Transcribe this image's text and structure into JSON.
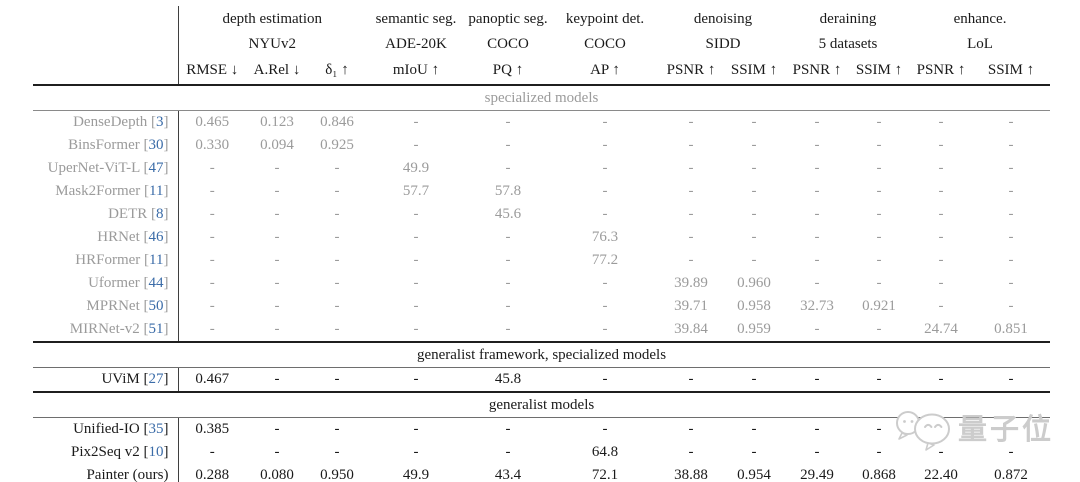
{
  "header": {
    "groups": [
      {
        "task": "depth estimation",
        "dataset": "NYUv2",
        "metrics": [
          "RMSE ↓",
          "A.Rel ↓",
          "δ₁ ↑"
        ]
      },
      {
        "task": "semantic seg.",
        "dataset": "ADE-20K",
        "metrics": [
          "mIoU ↑"
        ]
      },
      {
        "task": "panoptic seg.",
        "dataset": "COCO",
        "metrics": [
          "PQ ↑"
        ]
      },
      {
        "task": "keypoint det.",
        "dataset": "COCO",
        "metrics": [
          "AP ↑"
        ]
      },
      {
        "task": "denoising",
        "dataset": "SIDD",
        "metrics": [
          "PSNR ↑",
          "SSIM ↑"
        ]
      },
      {
        "task": "deraining",
        "dataset": "5 datasets",
        "metrics": [
          "PSNR ↑",
          "SSIM ↑"
        ]
      },
      {
        "task": "enhance.",
        "dataset": "LoL",
        "metrics": [
          "PSNR ↑",
          "SSIM ↑"
        ]
      }
    ]
  },
  "sections": [
    {
      "label": "specialized models",
      "rows": [
        {
          "name": "DenseDepth",
          "cite": "3",
          "values": [
            "0.465",
            "0.123",
            "0.846",
            "-",
            "-",
            "-",
            "-",
            "-",
            "-",
            "-",
            "-",
            "-"
          ]
        },
        {
          "name": "BinsFormer",
          "cite": "30",
          "values": [
            "0.330",
            "0.094",
            "0.925",
            "-",
            "-",
            "-",
            "-",
            "-",
            "-",
            "-",
            "-",
            "-"
          ]
        },
        {
          "name": "UperNet-ViT-L",
          "cite": "47",
          "values": [
            "-",
            "-",
            "-",
            "49.9",
            "-",
            "-",
            "-",
            "-",
            "-",
            "-",
            "-",
            "-"
          ]
        },
        {
          "name": "Mask2Former",
          "cite": "11",
          "values": [
            "-",
            "-",
            "-",
            "57.7",
            "57.8",
            "-",
            "-",
            "-",
            "-",
            "-",
            "-",
            "-"
          ]
        },
        {
          "name": "DETR",
          "cite": "8",
          "values": [
            "-",
            "-",
            "-",
            "-",
            "45.6",
            "-",
            "-",
            "-",
            "-",
            "-",
            "-",
            "-"
          ]
        },
        {
          "name": "HRNet",
          "cite": "46",
          "values": [
            "-",
            "-",
            "-",
            "-",
            "-",
            "76.3",
            "-",
            "-",
            "-",
            "-",
            "-",
            "-"
          ]
        },
        {
          "name": "HRFormer",
          "cite": "11",
          "values": [
            "-",
            "-",
            "-",
            "-",
            "-",
            "77.2",
            "-",
            "-",
            "-",
            "-",
            "-",
            "-"
          ]
        },
        {
          "name": "Uformer",
          "cite": "44",
          "values": [
            "-",
            "-",
            "-",
            "-",
            "-",
            "-",
            "39.89",
            "0.960",
            "-",
            "-",
            "-",
            "-"
          ]
        },
        {
          "name": "MPRNet",
          "cite": "50",
          "values": [
            "-",
            "-",
            "-",
            "-",
            "-",
            "-",
            "39.71",
            "0.958",
            "32.73",
            "0.921",
            "-",
            "-"
          ]
        },
        {
          "name": "MIRNet-v2",
          "cite": "51",
          "values": [
            "-",
            "-",
            "-",
            "-",
            "-",
            "-",
            "39.84",
            "0.959",
            "-",
            "-",
            "24.74",
            "0.851"
          ]
        }
      ]
    },
    {
      "label": "generalist framework, specialized models",
      "rows": [
        {
          "name": "UViM",
          "cite": "27",
          "values": [
            "0.467",
            "-",
            "-",
            "-",
            "45.8",
            "-",
            "-",
            "-",
            "-",
            "-",
            "-",
            "-"
          ]
        }
      ]
    },
    {
      "label": "generalist models",
      "rows": [
        {
          "name": "Unified-IO",
          "cite": "35",
          "values": [
            "0.385",
            "-",
            "-",
            "-",
            "-",
            "-",
            "-",
            "-",
            "-",
            "-",
            "-",
            "-"
          ]
        },
        {
          "name": "Pix2Seq v2",
          "cite": "10",
          "values": [
            "-",
            "-",
            "-",
            "-",
            "-",
            "64.8",
            "-",
            "-",
            "-",
            "-",
            "-",
            "-"
          ]
        },
        {
          "name": "Painter (ours)",
          "cite": "",
          "values": [
            "0.288",
            "0.080",
            "0.950",
            "49.9",
            "43.4",
            "72.1",
            "38.88",
            "0.954",
            "29.49",
            "0.868",
            "22.40",
            "0.872"
          ]
        }
      ]
    }
  ],
  "watermark": {
    "text": "量子位"
  },
  "colors": {
    "citation_blue": "#3b6ca8",
    "muted_gray": "#9b9b9b",
    "text_black": "#1a1a1a",
    "rule_dark": "#1f1f1f",
    "watermark_gray": "#cccccc"
  }
}
